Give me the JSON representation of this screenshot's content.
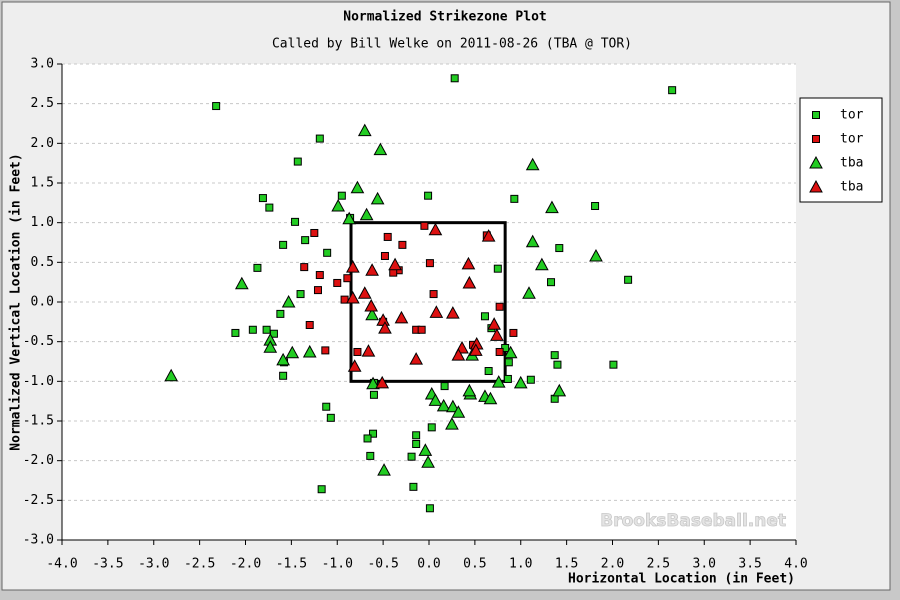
{
  "chart_data": {
    "type": "scatter",
    "title": "Normalized Strikezone Plot",
    "subtitle": "Called by Bill Welke on 2011-08-26 (TBA @ TOR)",
    "x_label": "Horizontal Location (in Feet)",
    "y_label": "Normalized Vertical Location (in Feet)",
    "watermark": "BrooksBaseball.net",
    "xlim": [
      -4,
      4
    ],
    "ylim": [
      -3,
      3
    ],
    "xticks": [
      {
        "value": -4,
        "label": "-4.0"
      },
      {
        "value": -3.5,
        "label": "-3.5"
      },
      {
        "value": -3,
        "label": "-3.0"
      },
      {
        "value": -2.5,
        "label": "-2.5"
      },
      {
        "value": -2,
        "label": "-2.0"
      },
      {
        "value": -1.5,
        "label": "-1.5"
      },
      {
        "value": -1,
        "label": "-1.0"
      },
      {
        "value": -0.5,
        "label": "-0.5"
      },
      {
        "value": 0,
        "label": "0.0"
      },
      {
        "value": 0.5,
        "label": "0.5"
      },
      {
        "value": 1,
        "label": "1.0"
      },
      {
        "value": 1.5,
        "label": "1.5"
      },
      {
        "value": 2,
        "label": "2.0"
      },
      {
        "value": 2.5,
        "label": "2.5"
      },
      {
        "value": 3,
        "label": "3.0"
      },
      {
        "value": 3.5,
        "label": "3.5"
      },
      {
        "value": 4,
        "label": "4.0"
      }
    ],
    "yticks": [
      {
        "value": -3,
        "label": "-3.0"
      },
      {
        "value": -2.5,
        "label": "-2.5"
      },
      {
        "value": -2,
        "label": "-2.0"
      },
      {
        "value": -1.5,
        "label": "-1.5"
      },
      {
        "value": -1,
        "label": "-1.0"
      },
      {
        "value": -0.5,
        "label": "-0.5"
      },
      {
        "value": 0,
        "label": "0.0"
      },
      {
        "value": 0.5,
        "label": "0.5"
      },
      {
        "value": 1,
        "label": "1.0"
      },
      {
        "value": 1.5,
        "label": "1.5"
      },
      {
        "value": 2,
        "label": "2.0"
      },
      {
        "value": 2.5,
        "label": "2.5"
      },
      {
        "value": 3,
        "label": "3.0"
      }
    ],
    "grid": "y",
    "legend": "right",
    "strike_zone": {
      "x": [
        -0.85,
        0.83
      ],
      "y": [
        -1,
        1
      ]
    },
    "series": [
      {
        "name": "tor",
        "color": "#22cc22",
        "marker": "square",
        "x": [
          -2.32,
          0.28,
          2.65,
          -1.19,
          -1.43,
          -1.81,
          -1.74,
          -0.95,
          -0.01,
          0.93,
          1.81,
          -1.46,
          -0.86,
          -1.59,
          -1.35,
          -1.11,
          1.42,
          -1.87,
          0.75,
          1.33,
          2.17,
          -1.4,
          -2.11,
          -1.92,
          -1.77,
          -1.62,
          -1.69,
          -1.58,
          -1.59,
          0.61,
          0.68,
          0.83,
          0.87,
          0.65,
          0.86,
          1.11,
          1.37,
          1.4,
          2.01,
          1.37,
          -0.6,
          -0.6,
          0.17,
          -1.12,
          -1.07,
          -0.61,
          -0.67,
          -0.64,
          -0.14,
          -0.14,
          -0.19,
          0.03,
          -1.17,
          -0.17,
          0.01
        ],
        "y": [
          2.47,
          2.82,
          2.67,
          2.06,
          1.77,
          1.31,
          1.19,
          1.34,
          1.34,
          1.3,
          1.21,
          1.01,
          1.06,
          0.72,
          0.78,
          0.62,
          0.68,
          0.43,
          0.42,
          0.25,
          0.28,
          0.1,
          -0.39,
          -0.35,
          -0.35,
          -0.15,
          -0.4,
          -0.76,
          -0.93,
          -0.18,
          -0.33,
          -0.58,
          -0.76,
          -0.87,
          -0.97,
          -0.98,
          -0.67,
          -0.79,
          -0.79,
          -1.22,
          -1.02,
          -1.17,
          -1.06,
          -1.32,
          -1.46,
          -1.66,
          -1.72,
          -1.94,
          -1.68,
          -1.79,
          -1.95,
          -1.58,
          -2.36,
          -2.33,
          -2.6
        ]
      },
      {
        "name": "tor",
        "color": "#dd1111",
        "marker": "square",
        "x": [
          -1.25,
          -1.36,
          -1.19,
          -1.21,
          -1.0,
          -0.89,
          -0.92,
          -0.45,
          -0.29,
          -0.48,
          -0.33,
          -0.39,
          -0.05,
          0.01,
          0.05,
          0.63,
          0.77,
          -1.3,
          -1.13,
          -0.78,
          -0.5,
          -0.14,
          -0.08,
          0.92,
          0.77,
          0.48
        ],
        "y": [
          0.87,
          0.44,
          0.34,
          0.15,
          0.24,
          0.3,
          0.03,
          0.82,
          0.72,
          0.58,
          0.4,
          0.37,
          0.96,
          0.49,
          0.1,
          0.84,
          -0.06,
          -0.29,
          -0.61,
          -0.63,
          -0.25,
          -0.35,
          -0.35,
          -0.39,
          -0.63,
          -0.54
        ]
      },
      {
        "name": "tba",
        "color": "#22cc22",
        "marker": "triangle",
        "x": [
          -2.04,
          -2.81,
          -0.7,
          -0.53,
          -0.78,
          -0.99,
          -0.56,
          -0.68,
          -0.87,
          1.13,
          1.34,
          1.13,
          1.23,
          1.09,
          1.82,
          -1.53,
          -1.73,
          -1.73,
          -1.59,
          -1.49,
          -1.3,
          -0.62,
          -0.61,
          0.03,
          0.07,
          0.16,
          0.26,
          0.32,
          0.25,
          0.45,
          0.61,
          0.67,
          0.76,
          1.0,
          1.42,
          0.89,
          0.47,
          0.44,
          -0.04,
          -0.01,
          -0.49
        ],
        "y": [
          0.23,
          -0.93,
          2.16,
          1.92,
          1.44,
          1.21,
          1.3,
          1.1,
          1.05,
          1.73,
          1.19,
          0.76,
          0.47,
          0.11,
          0.58,
          0.0,
          -0.48,
          -0.57,
          -0.73,
          -0.64,
          -0.63,
          -0.16,
          -1.03,
          -1.16,
          -1.24,
          -1.31,
          -1.32,
          -1.39,
          -1.54,
          -1.16,
          -1.19,
          -1.22,
          -1.01,
          -1.02,
          -1.12,
          -0.64,
          -0.67,
          -1.12,
          -1.87,
          -2.02,
          -2.12
        ]
      },
      {
        "name": "tba",
        "color": "#dd1111",
        "marker": "triangle",
        "x": [
          -0.83,
          -0.62,
          -0.37,
          0.07,
          0.43,
          0.65,
          0.44,
          -0.7,
          -0.83,
          -0.63,
          -0.5,
          -0.3,
          -0.48,
          0.08,
          0.26,
          0.71,
          0.74,
          0.36,
          0.52,
          0.51,
          0.32,
          -0.14,
          -0.66,
          -0.81,
          -0.51
        ],
        "y": [
          0.44,
          0.4,
          0.47,
          0.91,
          0.48,
          0.83,
          0.24,
          0.11,
          0.05,
          -0.05,
          -0.23,
          -0.2,
          -0.33,
          -0.13,
          -0.14,
          -0.28,
          -0.42,
          -0.58,
          -0.53,
          -0.61,
          -0.67,
          -0.72,
          -0.62,
          -0.81,
          -1.02
        ]
      }
    ]
  }
}
